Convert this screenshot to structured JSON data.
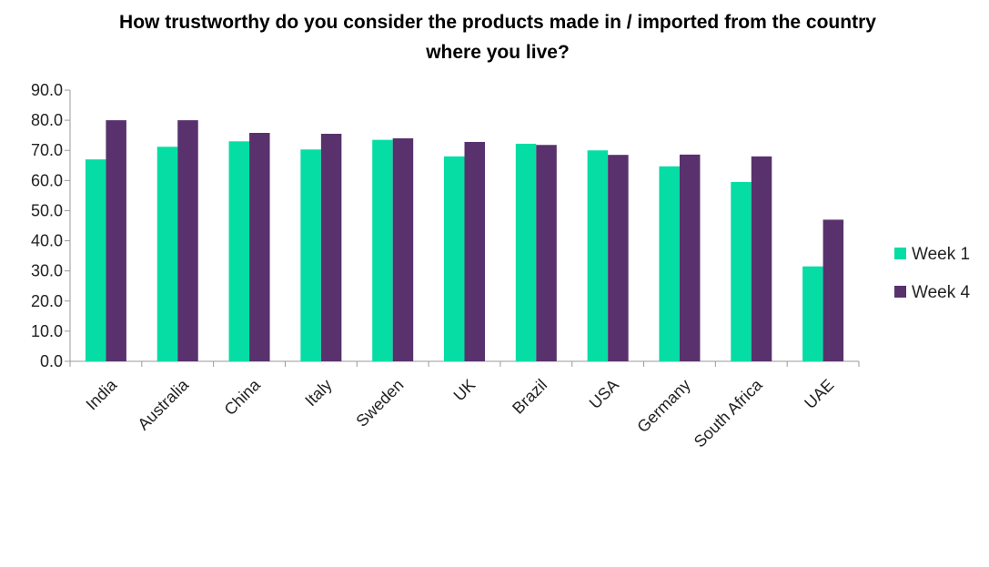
{
  "chart_data": {
    "type": "bar",
    "title": "How trustworthy do you consider the products made in / imported from the country where you live?",
    "categories": [
      "India",
      "Australia",
      "China",
      "Italy",
      "Sweden",
      "UK",
      "Brazil",
      "USA",
      "Germany",
      "South Africa",
      "UAE"
    ],
    "series": [
      {
        "name": "Week 1",
        "color": "#06DDA4",
        "values": [
          67.0,
          71.2,
          73.0,
          70.3,
          73.5,
          68.0,
          72.2,
          70.0,
          64.7,
          59.5,
          31.5
        ]
      },
      {
        "name": "Week 4",
        "color": "#58316D",
        "values": [
          80.0,
          80.0,
          75.8,
          75.5,
          74.0,
          72.8,
          71.8,
          68.5,
          68.6,
          68.0,
          47.0
        ]
      }
    ],
    "y_ticks": [
      "0.0",
      "10.0",
      "20.0",
      "30.0",
      "40.0",
      "50.0",
      "60.0",
      "70.0",
      "80.0",
      "90.0"
    ],
    "ylim": [
      0,
      90
    ],
    "grid": false,
    "legend_position": "right"
  }
}
